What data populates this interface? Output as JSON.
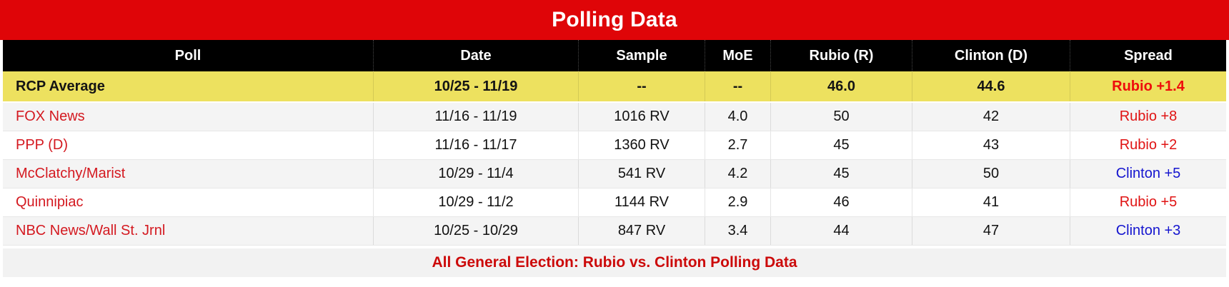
{
  "title": "Polling Data",
  "footer_caption": "All General Election: Rubio vs. Clinton Polling Data",
  "colors": {
    "banner_red": "#df0508",
    "header_black": "#000000",
    "average_row_yellow": "#ede15f",
    "poll_link_red": "#d41920",
    "spread_red": "#e01313",
    "spread_blue": "#1515cf",
    "alt_row_gray": "#f4f4f4"
  },
  "columns": {
    "poll": "Poll",
    "date": "Date",
    "sample": "Sample",
    "moe": "MoE",
    "rubio": "Rubio (R)",
    "clinton": "Clinton (D)",
    "spread": "Spread"
  },
  "average_row": {
    "poll": "RCP Average",
    "date": "10/25 - 11/19",
    "sample": "--",
    "moe": "--",
    "rubio": "46.0",
    "clinton": "44.6",
    "spread": "Rubio +1.4",
    "spread_color": "red"
  },
  "rows": [
    {
      "poll": "FOX News",
      "date": "11/16 - 11/19",
      "sample": "1016 RV",
      "moe": "4.0",
      "rubio": "50",
      "clinton": "42",
      "spread": "Rubio +8",
      "spread_color": "red"
    },
    {
      "poll": "PPP (D)",
      "date": "11/16 - 11/17",
      "sample": "1360 RV",
      "moe": "2.7",
      "rubio": "45",
      "clinton": "43",
      "spread": "Rubio +2",
      "spread_color": "red"
    },
    {
      "poll": "McClatchy/Marist",
      "date": "10/29 - 11/4",
      "sample": "541 RV",
      "moe": "4.2",
      "rubio": "45",
      "clinton": "50",
      "spread": "Clinton +5",
      "spread_color": "blue"
    },
    {
      "poll": "Quinnipiac",
      "date": "10/29 - 11/2",
      "sample": "1144 RV",
      "moe": "2.9",
      "rubio": "46",
      "clinton": "41",
      "spread": "Rubio +5",
      "spread_color": "red"
    },
    {
      "poll": "NBC News/Wall St. Jrnl",
      "date": "10/25 - 10/29",
      "sample": "847 RV",
      "moe": "3.4",
      "rubio": "44",
      "clinton": "47",
      "spread": "Clinton +3",
      "spread_color": "blue"
    }
  ],
  "chart_data": {
    "type": "table",
    "title": "Polling Data",
    "caption": "All General Election: Rubio vs. Clinton Polling Data",
    "columns": [
      "Poll",
      "Date",
      "Sample",
      "MoE",
      "Rubio (R)",
      "Clinton (D)",
      "Spread"
    ],
    "rows": [
      [
        "RCP Average",
        "10/25 - 11/19",
        "--",
        "--",
        46.0,
        44.6,
        "Rubio +1.4"
      ],
      [
        "FOX News",
        "11/16 - 11/19",
        "1016 RV",
        4.0,
        50,
        42,
        "Rubio +8"
      ],
      [
        "PPP (D)",
        "11/16 - 11/17",
        "1360 RV",
        2.7,
        45,
        43,
        "Rubio +2"
      ],
      [
        "McClatchy/Marist",
        "10/29 - 11/4",
        "541 RV",
        4.2,
        45,
        50,
        "Clinton +5"
      ],
      [
        "Quinnipiac",
        "10/29 - 11/2",
        "1144 RV",
        2.9,
        46,
        41,
        "Rubio +5"
      ],
      [
        "NBC News/Wall St. Jrnl",
        "10/25 - 10/29",
        "847 RV",
        3.4,
        44,
        47,
        "Clinton +3"
      ]
    ]
  }
}
